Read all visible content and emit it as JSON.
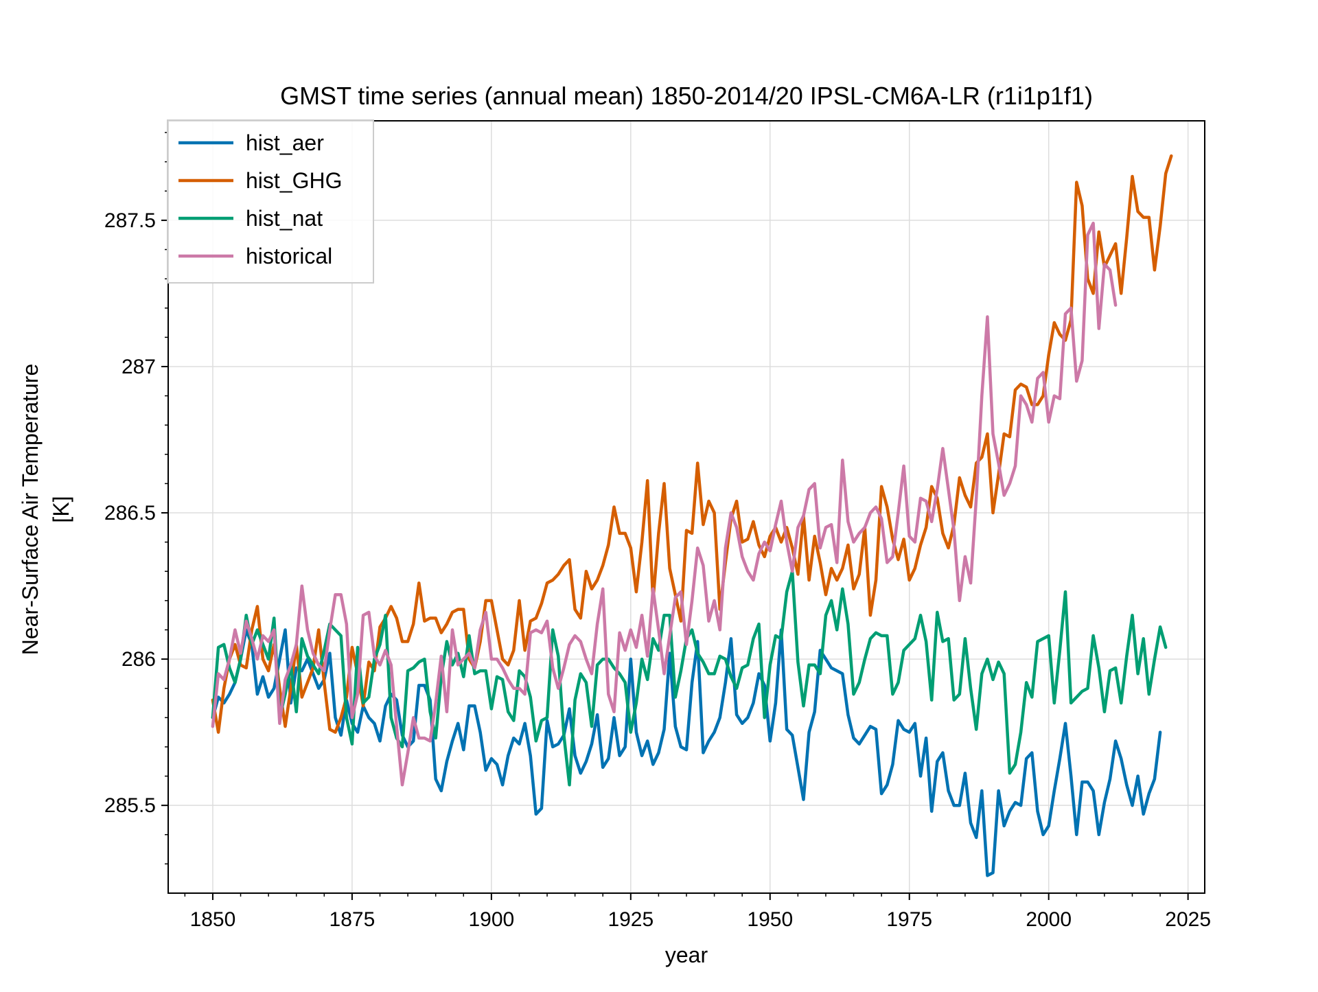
{
  "chart_data": {
    "type": "line",
    "title": "GMST time series (annual mean) 1850-2014/20 IPSL-CM6A-LR (r1i1p1f1)",
    "xlabel": "year",
    "ylabel": "Near-Surface Air Temperature",
    "ylabel_unit": "[K]",
    "xlim": [
      1842,
      2028
    ],
    "ylim": [
      285.2,
      287.84
    ],
    "xticks": [
      1850,
      1875,
      1900,
      1925,
      1950,
      1975,
      2000,
      2025
    ],
    "xtick_labels": [
      "1850",
      "1875",
      "1900",
      "1925",
      "1950",
      "1975",
      "2000",
      "2025"
    ],
    "yticks": [
      285.5,
      286,
      286.5,
      287,
      287.5
    ],
    "ytick_labels": [
      "285.5",
      "286",
      "286.5",
      "287",
      "287.5"
    ],
    "grid": true,
    "legend": "upper-left",
    "x_start": 1850,
    "series": [
      {
        "name": "hist_aer",
        "color": "#0072b2",
        "values": [
          285.8,
          285.87,
          285.85,
          285.88,
          285.92,
          286.0,
          286.1,
          286.05,
          285.88,
          285.94,
          285.87,
          285.9,
          286.0,
          286.1,
          285.85,
          285.97,
          285.96,
          286.0,
          285.95,
          285.9,
          285.93,
          286.02,
          285.8,
          285.74,
          285.86,
          285.78,
          285.75,
          285.84,
          285.8,
          285.78,
          285.72,
          285.84,
          285.88,
          285.86,
          285.74,
          285.7,
          285.72,
          285.91,
          285.91,
          285.86,
          285.59,
          285.55,
          285.65,
          285.72,
          285.78,
          285.69,
          285.84,
          285.84,
          285.75,
          285.62,
          285.66,
          285.64,
          285.57,
          285.67,
          285.73,
          285.71,
          285.78,
          285.67,
          285.47,
          285.49,
          285.79,
          285.7,
          285.71,
          285.74,
          285.83,
          285.67,
          285.61,
          285.65,
          285.71,
          285.81,
          285.63,
          285.66,
          285.8,
          285.67,
          285.7,
          286.0,
          285.75,
          285.67,
          285.72,
          285.64,
          285.68,
          285.76,
          286.02,
          285.77,
          285.7,
          285.69,
          285.92,
          286.06,
          285.68,
          285.72,
          285.75,
          285.8,
          285.92,
          286.07,
          285.81,
          285.78,
          285.8,
          285.85,
          285.95,
          285.91,
          285.72,
          285.85,
          286.1,
          285.76,
          285.74,
          285.63,
          285.52,
          285.75,
          285.82,
          286.03,
          286.0,
          285.97,
          285.96,
          285.95,
          285.81,
          285.73,
          285.71,
          285.74,
          285.77,
          285.76,
          285.54,
          285.57,
          285.64,
          285.79,
          285.76,
          285.75,
          285.78,
          285.6,
          285.73,
          285.48,
          285.65,
          285.68,
          285.55,
          285.5,
          285.5,
          285.61,
          285.44,
          285.39,
          285.55,
          285.26,
          285.27,
          285.55,
          285.43,
          285.48,
          285.51,
          285.5,
          285.66,
          285.68,
          285.48,
          285.4,
          285.43,
          285.55,
          285.66,
          285.78,
          285.6,
          285.4,
          285.58,
          285.58,
          285.55,
          285.4,
          285.51,
          285.59,
          285.72,
          285.66,
          285.57,
          285.5,
          285.6,
          285.47,
          285.54,
          285.59,
          285.75
        ]
      },
      {
        "name": "hist_GHG",
        "color": "#d55e00",
        "values": [
          285.86,
          285.75,
          285.9,
          286.0,
          286.05,
          285.98,
          285.97,
          286.1,
          286.18,
          286.0,
          285.96,
          286.05,
          285.9,
          285.77,
          285.9,
          286.05,
          285.87,
          285.92,
          285.97,
          286.1,
          285.92,
          285.76,
          285.75,
          285.8,
          285.87,
          286.04,
          285.95,
          285.84,
          285.99,
          285.96,
          286.11,
          286.14,
          286.18,
          286.14,
          286.06,
          286.06,
          286.12,
          286.26,
          286.13,
          286.14,
          286.14,
          286.09,
          286.12,
          286.16,
          286.17,
          286.17,
          286.0,
          285.97,
          286.06,
          286.2,
          286.2,
          286.1,
          286.0,
          285.98,
          286.03,
          286.2,
          286.03,
          286.13,
          286.14,
          286.19,
          286.26,
          286.27,
          286.29,
          286.32,
          286.34,
          286.17,
          286.14,
          286.3,
          286.24,
          286.27,
          286.32,
          286.39,
          286.52,
          286.43,
          286.43,
          286.38,
          286.23,
          286.4,
          286.61,
          286.2,
          286.43,
          286.6,
          286.31,
          286.22,
          286.13,
          286.44,
          286.43,
          286.67,
          286.46,
          286.54,
          286.5,
          286.17,
          286.33,
          286.48,
          286.54,
          286.4,
          286.41,
          286.47,
          286.39,
          286.35,
          286.42,
          286.45,
          286.4,
          286.45,
          286.38,
          286.29,
          286.49,
          286.27,
          286.42,
          286.33,
          286.22,
          286.31,
          286.27,
          286.31,
          286.39,
          286.24,
          286.29,
          286.45,
          286.15,
          286.27,
          286.59,
          286.52,
          286.41,
          286.34,
          286.41,
          286.27,
          286.31,
          286.39,
          286.45,
          286.59,
          286.55,
          286.43,
          286.38,
          286.46,
          286.62,
          286.56,
          286.52,
          286.67,
          286.69,
          286.77,
          286.5,
          286.63,
          286.77,
          286.76,
          286.92,
          286.94,
          286.93,
          286.87,
          286.87,
          286.9,
          287.04,
          287.15,
          287.11,
          287.09,
          287.16,
          287.63,
          287.55,
          287.3,
          287.25,
          287.46,
          287.34,
          287.38,
          287.42,
          287.25,
          287.44,
          287.65,
          287.53,
          287.51,
          287.51,
          287.33,
          287.48,
          287.66,
          287.72
        ]
      },
      {
        "name": "hist_nat",
        "color": "#009e73",
        "values": [
          285.8,
          286.04,
          286.05,
          285.97,
          285.92,
          286.0,
          286.15,
          286.05,
          286.1,
          286.05,
          286.0,
          286.14,
          285.8,
          285.88,
          285.98,
          285.82,
          286.07,
          286.01,
          285.98,
          285.95,
          286.03,
          286.12,
          286.1,
          286.08,
          285.8,
          285.71,
          286.04,
          285.85,
          285.87,
          286.0,
          286.05,
          286.15,
          285.8,
          285.73,
          285.7,
          285.96,
          285.97,
          285.99,
          286.0,
          285.82,
          285.73,
          285.94,
          286.06,
          285.98,
          286.02,
          285.94,
          286.08,
          285.95,
          285.96,
          285.96,
          285.83,
          285.94,
          285.93,
          285.82,
          285.79,
          285.96,
          285.94,
          285.87,
          285.72,
          285.79,
          285.8,
          286.1,
          286.01,
          285.74,
          285.57,
          285.86,
          285.95,
          285.92,
          285.77,
          285.98,
          286.0,
          286.0,
          285.97,
          285.95,
          285.92,
          285.75,
          285.85,
          286.0,
          285.93,
          286.07,
          286.03,
          286.15,
          286.15,
          285.87,
          285.96,
          286.07,
          286.1,
          286.02,
          285.99,
          285.95,
          285.95,
          286.01,
          286.0,
          285.94,
          285.9,
          285.97,
          285.98,
          286.07,
          286.12,
          285.8,
          285.98,
          286.08,
          286.07,
          286.23,
          286.3,
          285.99,
          285.84,
          285.98,
          285.98,
          285.95,
          286.15,
          286.2,
          286.1,
          286.24,
          286.12,
          285.88,
          285.92,
          286.0,
          286.07,
          286.09,
          286.08,
          286.08,
          285.88,
          285.92,
          286.03,
          286.05,
          286.07,
          286.15,
          286.06,
          285.86,
          286.16,
          286.06,
          286.07,
          285.86,
          285.88,
          286.07,
          285.9,
          285.76,
          285.95,
          286.0,
          285.93,
          285.99,
          285.95,
          285.61,
          285.64,
          285.75,
          285.92,
          285.87,
          286.06,
          286.07,
          286.08,
          285.85,
          286.03,
          286.23,
          285.85,
          285.87,
          285.89,
          285.9,
          286.08,
          285.97,
          285.82,
          285.96,
          285.97,
          285.85,
          286.01,
          286.15,
          285.95,
          286.07,
          285.88,
          286.0,
          286.11,
          286.04
        ]
      },
      {
        "name": "historical",
        "color": "#cc79a7",
        "values": [
          285.77,
          285.95,
          285.93,
          286.0,
          286.1,
          286.02,
          286.13,
          286.07,
          286.0,
          286.08,
          286.06,
          286.1,
          285.78,
          285.93,
          285.98,
          286.05,
          286.25,
          286.1,
          286.02,
          285.98,
          285.96,
          286.1,
          286.22,
          286.22,
          286.12,
          285.8,
          285.88,
          286.15,
          286.16,
          286.01,
          285.98,
          286.03,
          285.98,
          285.77,
          285.57,
          285.68,
          285.8,
          285.73,
          285.73,
          285.72,
          285.85,
          286.01,
          285.82,
          286.1,
          285.98,
          286.0,
          286.02,
          285.97,
          286.1,
          286.16,
          286.0,
          286.0,
          285.97,
          285.93,
          285.9,
          285.9,
          285.88,
          286.09,
          286.1,
          286.09,
          286.13,
          285.97,
          285.9,
          285.97,
          286.05,
          286.08,
          286.06,
          286.0,
          285.95,
          286.12,
          286.24,
          285.88,
          285.82,
          286.09,
          286.03,
          286.1,
          286.04,
          286.15,
          286.01,
          286.24,
          286.1,
          285.95,
          286.08,
          286.21,
          286.23,
          286.05,
          286.2,
          286.38,
          286.32,
          286.13,
          286.2,
          286.1,
          286.38,
          286.5,
          286.45,
          286.35,
          286.3,
          286.27,
          286.36,
          286.4,
          286.37,
          286.46,
          286.54,
          286.4,
          286.3,
          286.45,
          286.49,
          286.58,
          286.6,
          286.38,
          286.45,
          286.46,
          286.33,
          286.68,
          286.47,
          286.4,
          286.43,
          286.45,
          286.5,
          286.52,
          286.48,
          286.33,
          286.35,
          286.5,
          286.66,
          286.42,
          286.4,
          286.55,
          286.54,
          286.47,
          286.58,
          286.72,
          286.58,
          286.44,
          286.2,
          286.35,
          286.26,
          286.55,
          286.9,
          287.17,
          286.77,
          286.67,
          286.56,
          286.6,
          286.66,
          286.9,
          286.87,
          286.81,
          286.96,
          286.98,
          286.81,
          286.9,
          286.89,
          287.18,
          287.2,
          286.95,
          287.02,
          287.45,
          287.49,
          287.13,
          287.35,
          287.33,
          287.21
        ]
      }
    ]
  }
}
